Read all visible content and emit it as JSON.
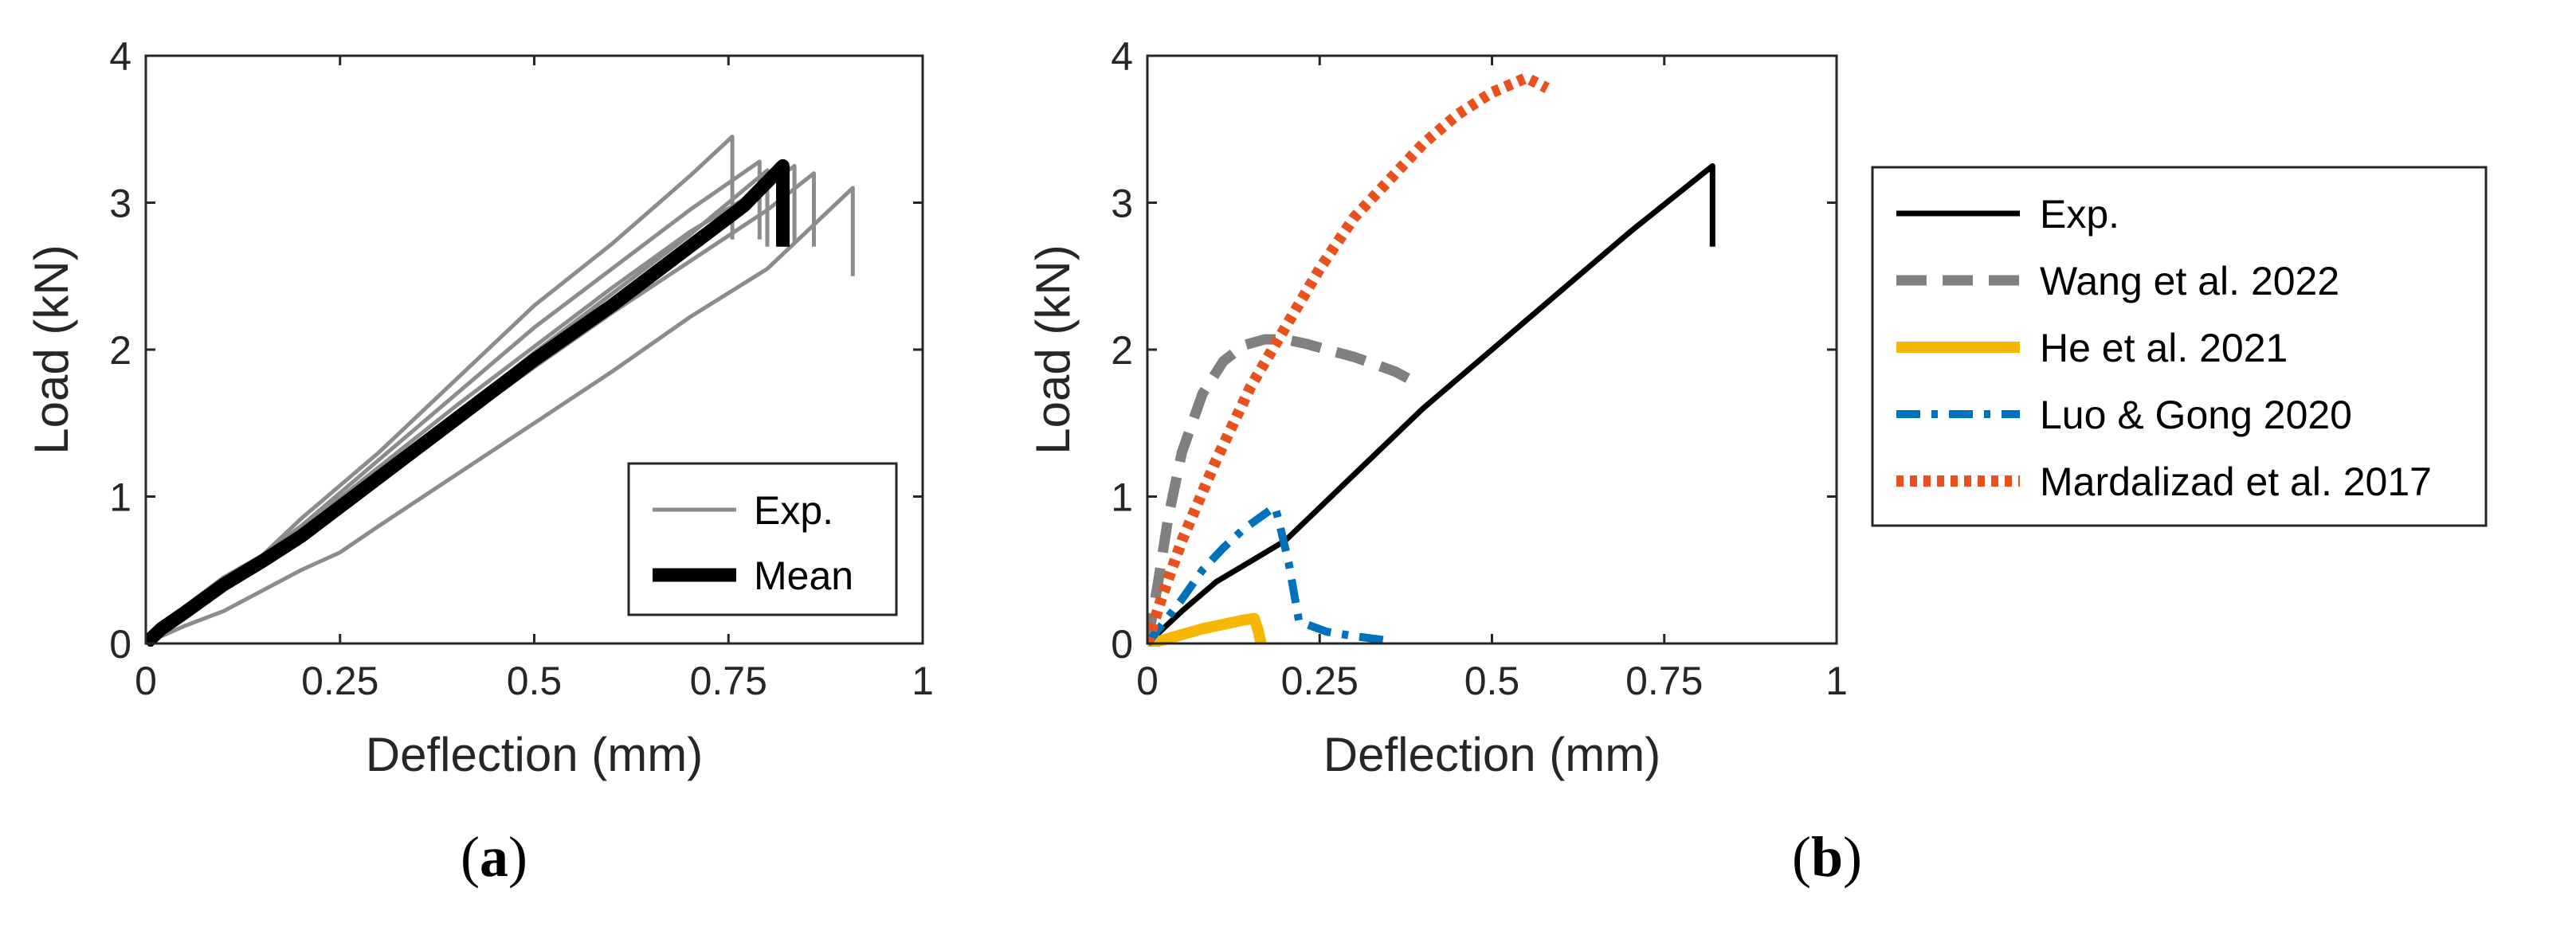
{
  "chart_data": [
    {
      "panel": "a",
      "panel_label": "a",
      "type": "line",
      "xlabel": "Deflection (mm)",
      "ylabel": "Load (kN)",
      "xlim": [
        0,
        1
      ],
      "ylim": [
        0,
        4
      ],
      "xticks": [
        "0",
        "0.25",
        "0.5",
        "0.75",
        "1"
      ],
      "yticks": [
        "0",
        "1",
        "2",
        "3",
        "4"
      ],
      "grid": false,
      "legend_position": "bottom-right",
      "legend": [
        {
          "label": "Exp.",
          "color": "#8c8c8c",
          "style": "thin"
        },
        {
          "label": "Mean",
          "color": "#000000",
          "style": "thick"
        }
      ],
      "series": [
        {
          "name": "Exp.",
          "color": "#8c8c8c",
          "x": [
            0,
            0.02,
            0.05,
            0.1,
            0.15,
            0.2,
            0.3,
            0.4,
            0.5,
            0.6,
            0.7,
            0.755,
            0.755
          ],
          "y": [
            0,
            0.12,
            0.22,
            0.42,
            0.6,
            0.85,
            1.3,
            1.8,
            2.3,
            2.72,
            3.18,
            3.45,
            2.75
          ]
        },
        {
          "name": "Exp.",
          "color": "#8c8c8c",
          "x": [
            0,
            0.02,
            0.05,
            0.1,
            0.15,
            0.2,
            0.3,
            0.4,
            0.5,
            0.6,
            0.7,
            0.79,
            0.79
          ],
          "y": [
            0,
            0.12,
            0.25,
            0.45,
            0.6,
            0.8,
            1.25,
            1.7,
            2.15,
            2.55,
            2.95,
            3.28,
            2.75
          ]
        },
        {
          "name": "Exp.",
          "color": "#8c8c8c",
          "x": [
            0,
            0.02,
            0.05,
            0.1,
            0.15,
            0.2,
            0.3,
            0.4,
            0.5,
            0.6,
            0.7,
            0.8,
            0.8
          ],
          "y": [
            0,
            0.12,
            0.22,
            0.4,
            0.55,
            0.72,
            1.12,
            1.55,
            1.98,
            2.38,
            2.78,
            3.22,
            2.7
          ]
        },
        {
          "name": "Exp.",
          "color": "#8c8c8c",
          "x": [
            0,
            0.02,
            0.05,
            0.1,
            0.15,
            0.2,
            0.3,
            0.4,
            0.5,
            0.6,
            0.7,
            0.8,
            0.86,
            0.86
          ],
          "y": [
            0,
            0.1,
            0.2,
            0.38,
            0.55,
            0.72,
            1.1,
            1.5,
            1.88,
            2.25,
            2.6,
            2.95,
            3.2,
            2.7
          ]
        },
        {
          "name": "Exp.",
          "color": "#8c8c8c",
          "x": [
            0,
            0.02,
            0.05,
            0.1,
            0.15,
            0.2,
            0.25,
            0.3,
            0.4,
            0.5,
            0.6,
            0.7,
            0.8,
            0.91,
            0.91
          ],
          "y": [
            0,
            0.05,
            0.12,
            0.22,
            0.36,
            0.5,
            0.62,
            0.8,
            1.15,
            1.5,
            1.85,
            2.22,
            2.55,
            3.1,
            2.5
          ]
        },
        {
          "name": "Exp.",
          "color": "#8c8c8c",
          "x": [
            0,
            0.02,
            0.05,
            0.1,
            0.15,
            0.2,
            0.3,
            0.4,
            0.5,
            0.6,
            0.7,
            0.8,
            0.835,
            0.835
          ],
          "y": [
            0,
            0.11,
            0.23,
            0.43,
            0.58,
            0.78,
            1.2,
            1.62,
            2.02,
            2.42,
            2.8,
            3.12,
            3.25,
            2.72
          ]
        },
        {
          "name": "Mean",
          "color": "#000000",
          "x": [
            0,
            0.02,
            0.05,
            0.1,
            0.15,
            0.2,
            0.25,
            0.3,
            0.4,
            0.5,
            0.6,
            0.7,
            0.77,
            0.82,
            0.82
          ],
          "y": [
            0,
            0.1,
            0.21,
            0.4,
            0.56,
            0.73,
            0.93,
            1.13,
            1.53,
            1.93,
            2.3,
            2.7,
            2.98,
            3.25,
            2.7
          ]
        }
      ]
    },
    {
      "panel": "b",
      "panel_label": "b",
      "type": "line",
      "xlabel": "Deflection (mm)",
      "ylabel": "Load (kN)",
      "xlim": [
        0,
        1
      ],
      "ylim": [
        0,
        4
      ],
      "xticks": [
        "0",
        "0.25",
        "0.5",
        "0.75",
        "1"
      ],
      "yticks": [
        "0",
        "1",
        "2",
        "3",
        "4"
      ],
      "grid": false,
      "legend_position": "outside-right",
      "series": [
        {
          "name": "Exp.",
          "color": "#000000",
          "style": "solid",
          "x": [
            0,
            0.05,
            0.1,
            0.15,
            0.2,
            0.3,
            0.4,
            0.5,
            0.6,
            0.7,
            0.78,
            0.82,
            0.82
          ],
          "y": [
            0,
            0.22,
            0.42,
            0.56,
            0.7,
            1.15,
            1.6,
            2.0,
            2.4,
            2.8,
            3.1,
            3.25,
            2.7
          ]
        },
        {
          "name": "Wang et al. 2022",
          "color": "#808080",
          "style": "dashed",
          "x": [
            0,
            0.015,
            0.03,
            0.05,
            0.08,
            0.11,
            0.14,
            0.17,
            0.2,
            0.23,
            0.26,
            0.3,
            0.33,
            0.36,
            0.38
          ],
          "y": [
            0,
            0.4,
            0.85,
            1.3,
            1.7,
            1.92,
            2.03,
            2.07,
            2.07,
            2.04,
            2.0,
            1.95,
            1.9,
            1.85,
            1.8
          ]
        },
        {
          "name": "He et al. 2021",
          "color": "#f5b700",
          "style": "solid-thick",
          "x": [
            0,
            0.02,
            0.05,
            0.08,
            0.11,
            0.14,
            0.155,
            0.16,
            0.165
          ],
          "y": [
            0,
            0.02,
            0.06,
            0.1,
            0.13,
            0.16,
            0.17,
            0.1,
            0.0
          ]
        },
        {
          "name": "Luo & Gong 2020",
          "color": "#0072bd",
          "style": "dashdot",
          "x": [
            0,
            0.02,
            0.05,
            0.08,
            0.11,
            0.14,
            0.17,
            0.185,
            0.19,
            0.205,
            0.22,
            0.26,
            0.3,
            0.35
          ],
          "y": [
            0,
            0.12,
            0.3,
            0.5,
            0.65,
            0.78,
            0.88,
            0.93,
            0.85,
            0.55,
            0.15,
            0.08,
            0.05,
            0.02
          ]
        },
        {
          "name": "Mardalizad et al. 2017",
          "color": "#e8501c",
          "style": "dotted",
          "x": [
            0,
            0.02,
            0.05,
            0.1,
            0.15,
            0.2,
            0.25,
            0.3,
            0.35,
            0.4,
            0.45,
            0.5,
            0.55,
            0.58
          ],
          "y": [
            0,
            0.3,
            0.7,
            1.25,
            1.75,
            2.15,
            2.55,
            2.9,
            3.15,
            3.4,
            3.6,
            3.75,
            3.85,
            3.78
          ]
        }
      ]
    }
  ]
}
